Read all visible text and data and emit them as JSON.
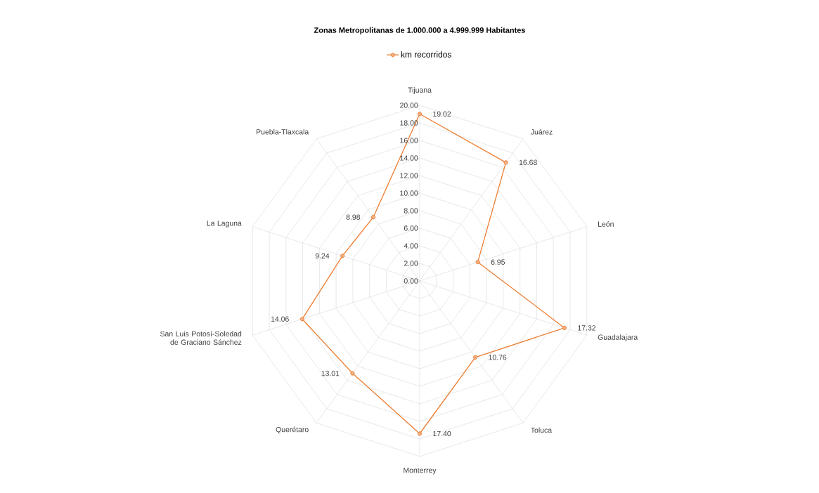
{
  "chart_data": {
    "type": "radar",
    "title": "Zonas Metropolitanas  de 1.000.000 a 4.999.999 Habitantes",
    "categories": [
      "Tijuana",
      "Juárez",
      "León",
      "Guadalajara",
      "Toluca",
      "Monterrey",
      "Querétaro",
      "San Luis Potosí-Soledad de Graciano Sánchez",
      "La Laguna",
      "Puebla-Tlaxcala"
    ],
    "series": [
      {
        "name": "km recorridos",
        "color": "#ed7d31",
        "values": [
          19.02,
          16.68,
          6.95,
          17.32,
          10.76,
          17.4,
          13.01,
          14.06,
          9.24,
          8.98
        ],
        "value_labels": [
          "19.02",
          "16.68",
          "6.95",
          "17.32",
          "10.76",
          "17.40",
          "13.01",
          "14.06",
          "9.24",
          "8.98"
        ]
      }
    ],
    "ylim": [
      0,
      20
    ],
    "yticks": [
      {
        "value": 0,
        "label": "0.00"
      },
      {
        "value": 2,
        "label": "2.00"
      },
      {
        "value": 4,
        "label": "4.00"
      },
      {
        "value": 6,
        "label": "6.00"
      },
      {
        "value": 8,
        "label": "8.00"
      },
      {
        "value": 10,
        "label": "10.00"
      },
      {
        "value": 12,
        "label": "12.00"
      },
      {
        "value": 14,
        "label": "14.00"
      },
      {
        "value": 16,
        "label": "16.00"
      },
      {
        "value": 18,
        "label": "18.00"
      },
      {
        "value": 20,
        "label": "20.00"
      }
    ],
    "grid": true,
    "legend": "top",
    "marker": "circle",
    "line_style": "solid"
  }
}
